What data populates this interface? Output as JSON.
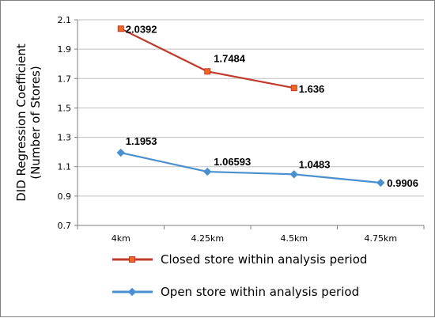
{
  "chart_data": {
    "type": "line",
    "categories": [
      "4km",
      "4.25km",
      "4.5km",
      "4.75km"
    ],
    "y_ticks": [
      "0.7",
      "0.9",
      "1.1",
      "1.3",
      "1.5",
      "1.7",
      "1.9",
      "2.1"
    ],
    "ylim": [
      0.7,
      2.1
    ],
    "ylabel": [
      "DID Regression Coefficient",
      "(Number of Stores)"
    ],
    "grid": "horizontal",
    "legend_position": "bottom",
    "series": [
      {
        "name": "Closed store within analysis period",
        "color": "#c0392b",
        "marker": "square",
        "marker_fill": "#f26522",
        "values": [
          2.0392,
          1.7484,
          1.636,
          null
        ],
        "labels": [
          "2.0392",
          "1.7484",
          "1.636",
          ""
        ]
      },
      {
        "name": "Open store within analysis period",
        "color": "#4a90d0",
        "marker": "diamond",
        "marker_fill": "#4a90d0",
        "values": [
          1.1953,
          1.06593,
          1.0483,
          0.9906
        ],
        "labels": [
          "1.1953",
          "1.06593",
          "1.0483",
          "0.9906"
        ]
      }
    ]
  }
}
